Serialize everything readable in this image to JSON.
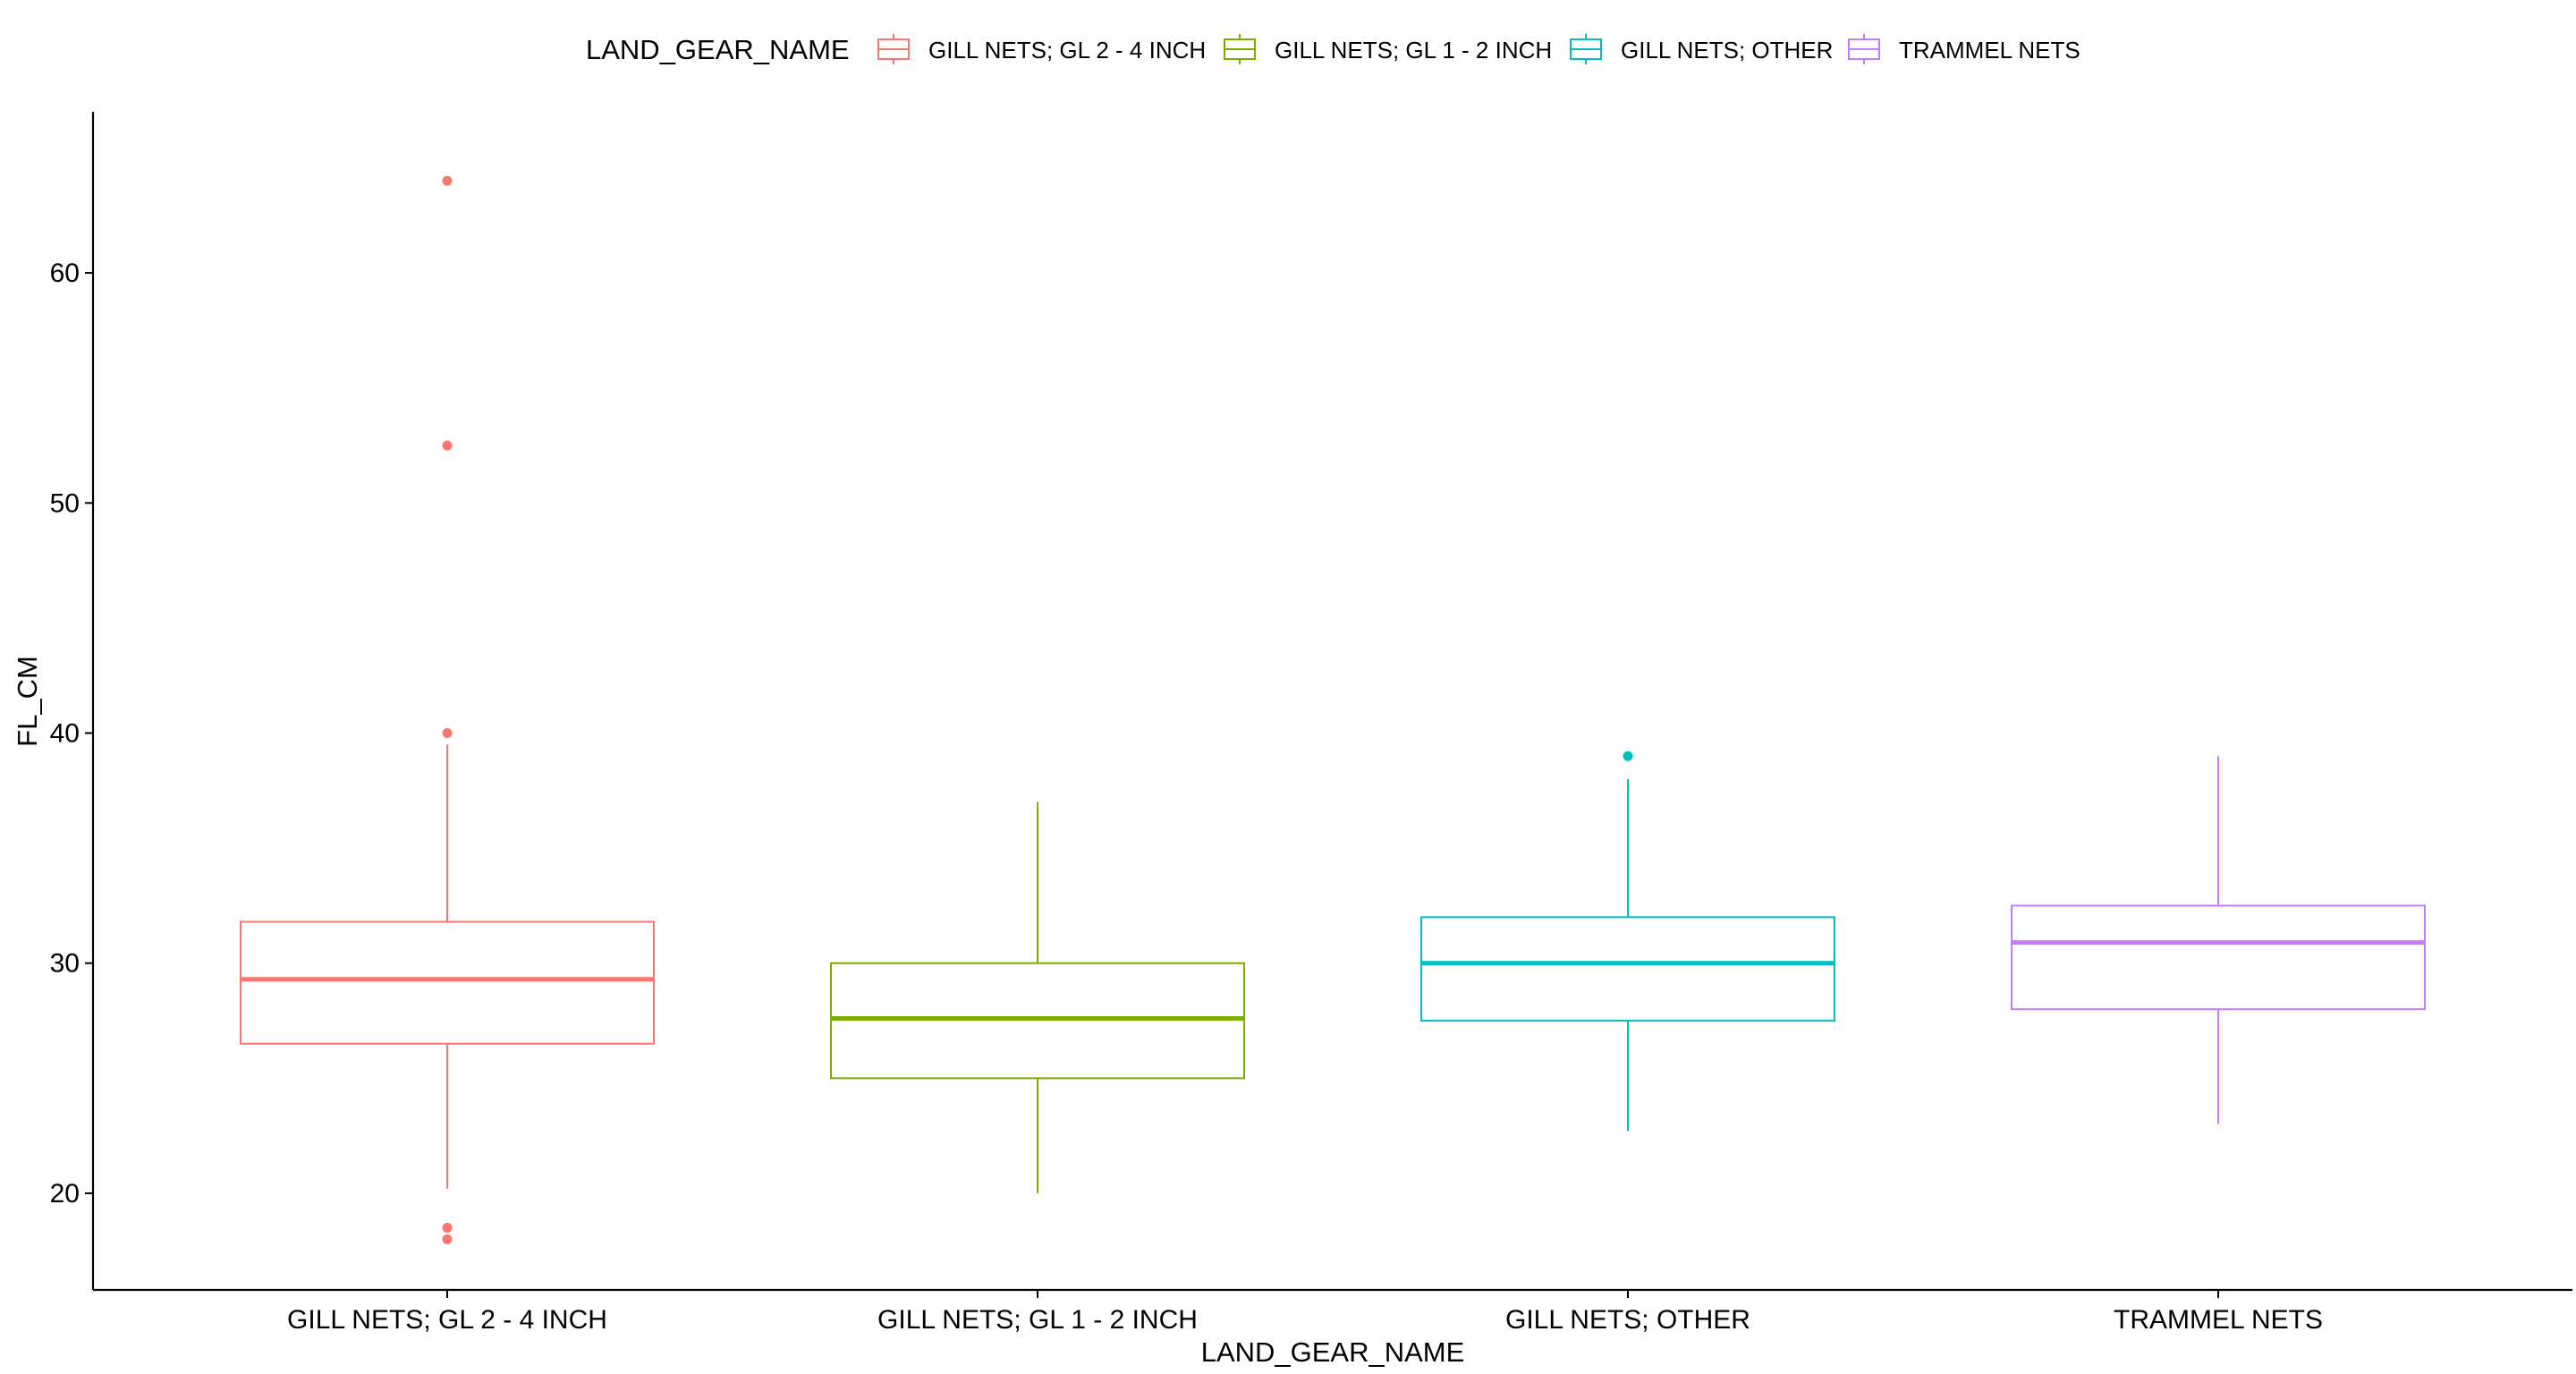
{
  "chart_data": {
    "type": "boxplot",
    "xlabel": "LAND_GEAR_NAME",
    "ylabel": "FL_CM",
    "ylim": [
      15.8,
      67
    ],
    "yticks": [
      20,
      30,
      40,
      50,
      60
    ],
    "grid": false,
    "legend": {
      "title": "LAND_GEAR_NAME",
      "position": "top"
    },
    "categories": [
      "GILL NETS; GL 2 - 4 INCH",
      "GILL NETS; GL 1 - 2 INCH",
      "GILL NETS; OTHER",
      "TRAMMEL NETS"
    ],
    "series": [
      {
        "name": "GILL NETS; GL 2 - 4 INCH",
        "color": "#F8766D",
        "whisker_low": 20.2,
        "q1": 26.5,
        "median": 29.3,
        "q3": 31.8,
        "whisker_high": 39.5,
        "outliers": [
          64.0,
          52.5,
          40.0,
          18.5,
          18.0
        ]
      },
      {
        "name": "GILL NETS; GL 1 - 2 INCH",
        "color": "#7CAE00",
        "whisker_low": 20.0,
        "q1": 25.0,
        "median": 27.6,
        "q3": 30.0,
        "whisker_high": 37.0,
        "outliers": []
      },
      {
        "name": "GILL NETS; OTHER",
        "color": "#00BFC4",
        "whisker_low": 22.7,
        "q1": 27.5,
        "median": 30.0,
        "q3": 32.0,
        "whisker_high": 38.0,
        "outliers": [
          39.0
        ]
      },
      {
        "name": "TRAMMEL NETS",
        "color": "#C77CFF",
        "whisker_low": 23.0,
        "q1": 28.0,
        "median": 30.9,
        "q3": 32.5,
        "whisker_high": 39.0,
        "outliers": []
      }
    ]
  }
}
